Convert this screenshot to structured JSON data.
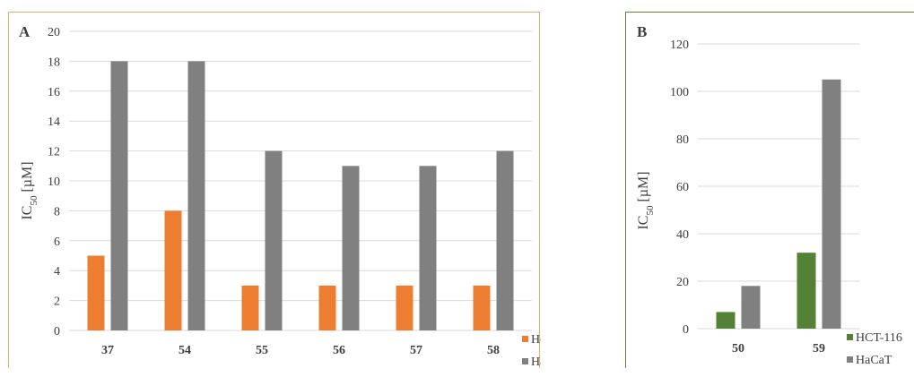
{
  "chart_data": [
    {
      "type": "bar",
      "panel_label": "A",
      "categories": [
        "37",
        "54",
        "55",
        "56",
        "57",
        "58"
      ],
      "series": [
        {
          "name": "HeLa",
          "color": "#ed7d31",
          "values": [
            5,
            8,
            3,
            3,
            3,
            3
          ]
        },
        {
          "name": "HaCaT",
          "color": "#808080",
          "values": [
            18,
            18,
            12,
            11,
            11,
            12
          ]
        }
      ],
      "ylabel_main": "IC",
      "ylabel_sub": "50",
      "ylabel_unit": " [µM]",
      "ylim": [
        0,
        20
      ],
      "yticks": [
        "0",
        "2",
        "4",
        "6",
        "8",
        "10",
        "12",
        "14",
        "16",
        "18",
        "20"
      ],
      "grid": true,
      "legend_position": "bottom-right"
    },
    {
      "type": "bar",
      "panel_label": "B",
      "categories": [
        "50",
        "59"
      ],
      "series": [
        {
          "name": "HCT-116",
          "color": "#538135",
          "values": [
            7,
            32
          ]
        },
        {
          "name": "HaCaT",
          "color": "#808080",
          "values": [
            18,
            105
          ]
        }
      ],
      "ylabel_main": "IC",
      "ylabel_sub": "50",
      "ylabel_unit": " [µM]",
      "ylim": [
        0,
        120
      ],
      "yticks": [
        "0",
        "20",
        "40",
        "60",
        "80",
        "100",
        "120"
      ],
      "grid": true,
      "legend_position": "bottom-right"
    }
  ]
}
